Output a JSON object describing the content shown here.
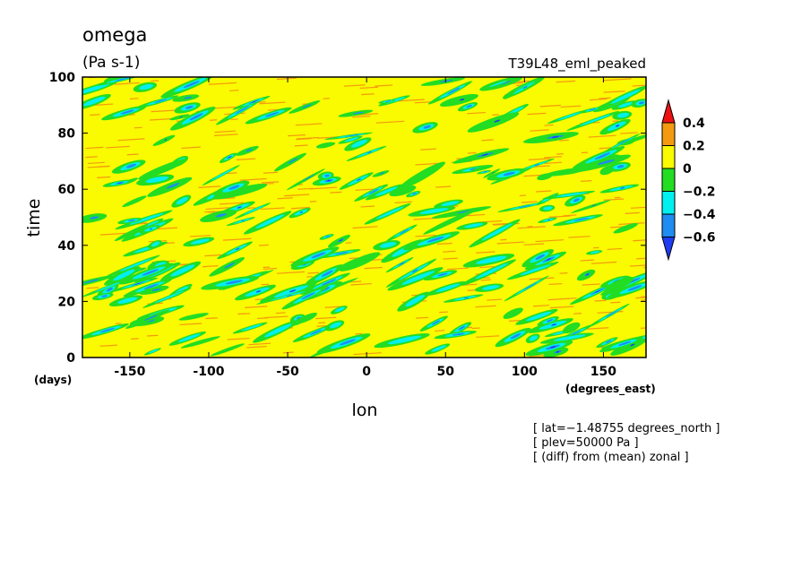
{
  "chart_data": {
    "type": "heatmap",
    "title": "omega",
    "units": "(Pa s-1)",
    "experiment": "T39L48_eml_peaked",
    "xlabel": "lon",
    "ylabel": "time",
    "x_unit": "(degrees_east)",
    "y_unit": "(days)",
    "xlim": [
      -180,
      177
    ],
    "ylim": [
      0,
      100
    ],
    "x_ticks": [
      "-150",
      "-100",
      "-50",
      "0",
      "50",
      "100",
      "150"
    ],
    "x_tick_values": [
      -150,
      -100,
      -50,
      0,
      50,
      100,
      150
    ],
    "y_ticks": [
      "0",
      "20",
      "40",
      "60",
      "80",
      "100"
    ],
    "y_tick_values": [
      0,
      20,
      40,
      60,
      80,
      100
    ],
    "colorbar": {
      "labels": [
        "0.4",
        "0.2",
        "0",
        "−0.2",
        "−0.4",
        "−0.6"
      ],
      "levels": [
        0.4,
        0.2,
        0,
        -0.2,
        -0.4,
        -0.6
      ],
      "colors_top_to_bottom": [
        "#ee1111",
        "#f39a10",
        "#fafa00",
        "#22dd22",
        "#00f0f0",
        "#1e8cf0",
        "#1e3cf0"
      ]
    },
    "dominant_value_range": [
      0,
      0.2
    ],
    "annotations": [
      "[ lat=−1.48755 degrees_north ]",
      "[ plev=50000 Pa ]",
      "[ (diff) from (mean) zonal ]"
    ],
    "grid": false
  }
}
